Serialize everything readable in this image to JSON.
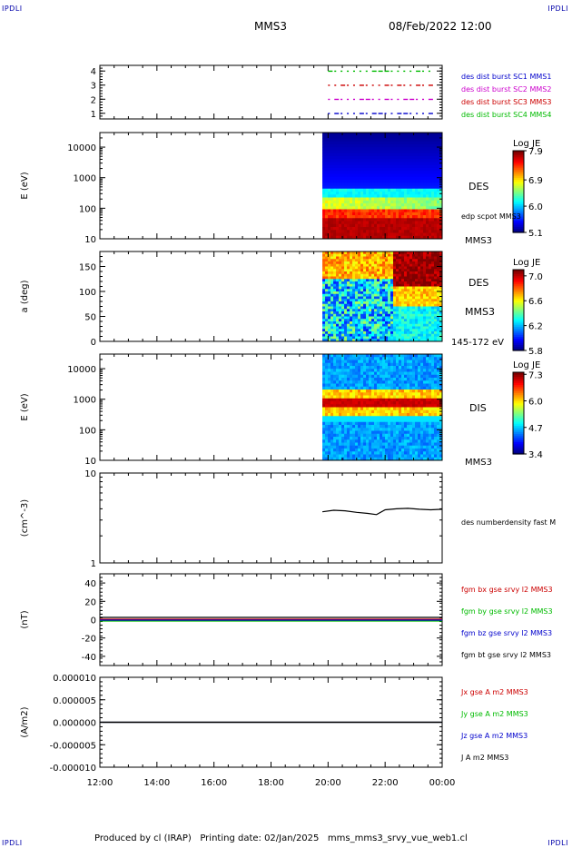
{
  "header": {
    "corner_left_top": "IPDLI",
    "corner_right_top": "IPDLI",
    "corner_left_bottom": "IPDLI",
    "corner_right_bottom": "IPDLI",
    "spacecraft": "MMS3",
    "datetime": "08/Feb/2022 12:00"
  },
  "footer": {
    "text": "Produced by cl (IRAP)   Printing date: 02/Jan/2025   mms_mms3_srvy_vue_web1.cl"
  },
  "chart_data": [
    {
      "type": "scatter",
      "panel": "availability",
      "yticks": [
        "1",
        "2",
        "3",
        "4"
      ],
      "ylim": [
        0.6,
        4.4
      ],
      "series": [
        {
          "name": "des dist burst SC1 MMS1",
          "y": 1,
          "color": "#0000cc"
        },
        {
          "name": "des dist burst SC2 MMS2",
          "y": 2,
          "color": "#cc00cc"
        },
        {
          "name": "des dist burst SC3 MMS3",
          "y": 3,
          "color": "#cc0000"
        },
        {
          "name": "des dist burst SC4 MMS4",
          "y": 4,
          "color": "#00bb00"
        }
      ],
      "x_range_hours": [
        20.0,
        23.6
      ]
    },
    {
      "type": "heatmap",
      "panel": "des-energy",
      "ylabel": "E (eV)",
      "yscale": "log",
      "yticks": [
        "10",
        "100",
        "1000",
        "10000"
      ],
      "ylim": [
        10,
        30000
      ],
      "right_label": "DES",
      "right_label2": "edp scpot MMS3",
      "right_label3": "MMS3",
      "colorbar": {
        "title": "Log JE",
        "ticks": [
          "5.1",
          "6.0",
          "6.9",
          "7.9"
        ],
        "min": 5.1,
        "max": 7.9
      },
      "data_start_hour": 19.8
    },
    {
      "type": "heatmap",
      "panel": "des-pitch",
      "ylabel": "a (deg)",
      "yticks": [
        "0",
        "50",
        "100",
        "150"
      ],
      "ylim": [
        0,
        180
      ],
      "right_label": "DES",
      "right_label2": "MMS3",
      "right_label3": "145-172 eV",
      "colorbar": {
        "title": "Log JE",
        "ticks": [
          "5.8",
          "6.2",
          "6.6",
          "7.0"
        ],
        "min": 5.8,
        "max": 7.1
      },
      "data_start_hour": 19.8
    },
    {
      "type": "heatmap",
      "panel": "dis-energy",
      "ylabel": "E (eV)",
      "yscale": "log",
      "yticks": [
        "10",
        "100",
        "1000",
        "10000"
      ],
      "ylim": [
        10,
        30000
      ],
      "right_label": "DIS",
      "right_label2": "MMS3",
      "colorbar": {
        "title": "Log JE",
        "ticks": [
          "3.4",
          "4.7",
          "6.0",
          "7.3"
        ],
        "min": 3.4,
        "max": 7.4
      },
      "data_start_hour": 19.8
    },
    {
      "type": "line",
      "panel": "density",
      "ylabel": "(cm^-3)",
      "yscale": "log",
      "yticks": [
        "1",
        "10"
      ],
      "ylim": [
        1,
        10
      ],
      "series": [
        {
          "name": "des numberdensity fast M",
          "color": "#000000",
          "x": [
            19.8,
            20.2,
            20.6,
            21.0,
            21.4,
            21.7,
            22.0,
            22.4,
            22.8,
            23.2,
            23.6,
            24.0
          ],
          "y": [
            3.7,
            3.85,
            3.8,
            3.65,
            3.55,
            3.45,
            3.9,
            4.0,
            4.05,
            3.95,
            3.9,
            3.95
          ]
        }
      ]
    },
    {
      "type": "line",
      "panel": "magnetic-field",
      "ylabel": "(nT)",
      "yticks": [
        "-40",
        "-20",
        "0",
        "20",
        "40"
      ],
      "ylim": [
        -50,
        50
      ],
      "series": [
        {
          "name": "fgm bx gse srvy l2 MMS3",
          "color": "#cc0000",
          "x": [
            12,
            24
          ],
          "y": [
            0.5,
            0.5
          ]
        },
        {
          "name": "fgm by gse srvy l2 MMS3",
          "color": "#00bb00",
          "x": [
            12,
            24
          ],
          "y": [
            -1.5,
            -1.5
          ]
        },
        {
          "name": "fgm bz gse srvy l2 MMS3",
          "color": "#0000cc",
          "x": [
            12,
            24
          ],
          "y": [
            -0.5,
            -0.5
          ]
        },
        {
          "name": "fgm bt gse srvy l2 MMS3",
          "color": "#000000",
          "x": [
            12,
            24
          ],
          "y": [
            2.5,
            2.5
          ]
        }
      ]
    },
    {
      "type": "line",
      "panel": "current-density",
      "ylabel": "(A/m2)",
      "yticks": [
        "-0.000010",
        "-0.000005",
        "0.000000",
        "0.000005",
        "0.000010"
      ],
      "ylim": [
        -1e-05,
        1e-05
      ],
      "series": [
        {
          "name": "Jx gse A m2 MMS3",
          "color": "#cc0000",
          "x": [
            12,
            24
          ],
          "y": [
            0,
            0
          ]
        },
        {
          "name": "Jy gse A m2 MMS3",
          "color": "#00bb00",
          "x": [
            12,
            24
          ],
          "y": [
            0,
            0
          ]
        },
        {
          "name": "Jz gse A m2 MMS3",
          "color": "#0000cc",
          "x": [
            12,
            24
          ],
          "y": [
            0,
            0
          ]
        },
        {
          "name": "J A m2 MMS3",
          "color": "#000000",
          "x": [
            12,
            24
          ],
          "y": [
            0,
            0
          ]
        }
      ]
    }
  ],
  "x_axis": {
    "xlim": [
      12,
      24
    ],
    "tick_hours": [
      12,
      14,
      16,
      18,
      20,
      22,
      24
    ],
    "tick_labels": [
      "12:00",
      "14:00",
      "16:00",
      "18:00",
      "20:00",
      "22:00",
      "00:00"
    ]
  }
}
